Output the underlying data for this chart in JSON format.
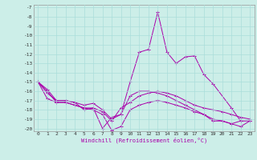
{
  "xlabel": "Windchill (Refroidissement éolien,°C)",
  "bg_color": "#cceee8",
  "grid_color": "#aaddda",
  "line_color": "#aa00aa",
  "xmin": 0,
  "xmax": 23,
  "ymin": -20,
  "ymax": -7,
  "s1_x": [
    0,
    1,
    2,
    3,
    4,
    5,
    6,
    7,
    8,
    9,
    10,
    11,
    12,
    13,
    14,
    15,
    16,
    17,
    18,
    19,
    21,
    22
  ],
  "s1_y": [
    -15.0,
    -15.8,
    -17.0,
    -17.0,
    -17.2,
    -17.5,
    -17.3,
    -18.0,
    -19.0,
    -18.5,
    -15.0,
    -11.8,
    -11.5,
    -7.5,
    -11.8,
    -13.0,
    -12.3,
    -12.2,
    -14.2,
    -15.2,
    -17.8,
    -19.2
  ],
  "s2_x": [
    0,
    1,
    2,
    3,
    4,
    5,
    6,
    7,
    8,
    9,
    10,
    11,
    12,
    13,
    14,
    15,
    16,
    17,
    18,
    19,
    20,
    21,
    22,
    23
  ],
  "s2_y": [
    -15.0,
    -16.0,
    -17.2,
    -17.2,
    -17.5,
    -17.8,
    -17.8,
    -20.0,
    -18.8,
    -18.5,
    -16.5,
    -16.0,
    -16.0,
    -16.2,
    -16.5,
    -17.0,
    -17.5,
    -18.0,
    -18.5,
    -19.2,
    -19.2,
    -19.5,
    -19.2,
    -19.2
  ],
  "s3_x": [
    0,
    1,
    2,
    3,
    4,
    5,
    6,
    7,
    8,
    9,
    10,
    11,
    12,
    13,
    14,
    15,
    16,
    17,
    18,
    19,
    20,
    21,
    22,
    23
  ],
  "s3_y": [
    -15.0,
    -16.2,
    -17.0,
    -17.0,
    -17.2,
    -18.0,
    -17.8,
    -18.2,
    -19.2,
    -17.8,
    -17.2,
    -16.5,
    -16.2,
    -16.0,
    -16.2,
    -16.5,
    -17.0,
    -17.5,
    -17.8,
    -18.0,
    -18.2,
    -18.5,
    -18.8,
    -19.0
  ],
  "s4_x": [
    0,
    1,
    2,
    3,
    4,
    5,
    6,
    7,
    8,
    9,
    10,
    11,
    12,
    13,
    14,
    15,
    16,
    17,
    18,
    19,
    20,
    21,
    22,
    23
  ],
  "s4_y": [
    -15.0,
    -16.8,
    -17.2,
    -17.2,
    -17.5,
    -17.8,
    -18.0,
    -18.5,
    -20.2,
    -19.8,
    -18.0,
    -17.5,
    -17.2,
    -17.0,
    -17.2,
    -17.5,
    -17.8,
    -18.2,
    -18.5,
    -19.0,
    -19.2,
    -19.5,
    -19.8,
    -19.2
  ]
}
